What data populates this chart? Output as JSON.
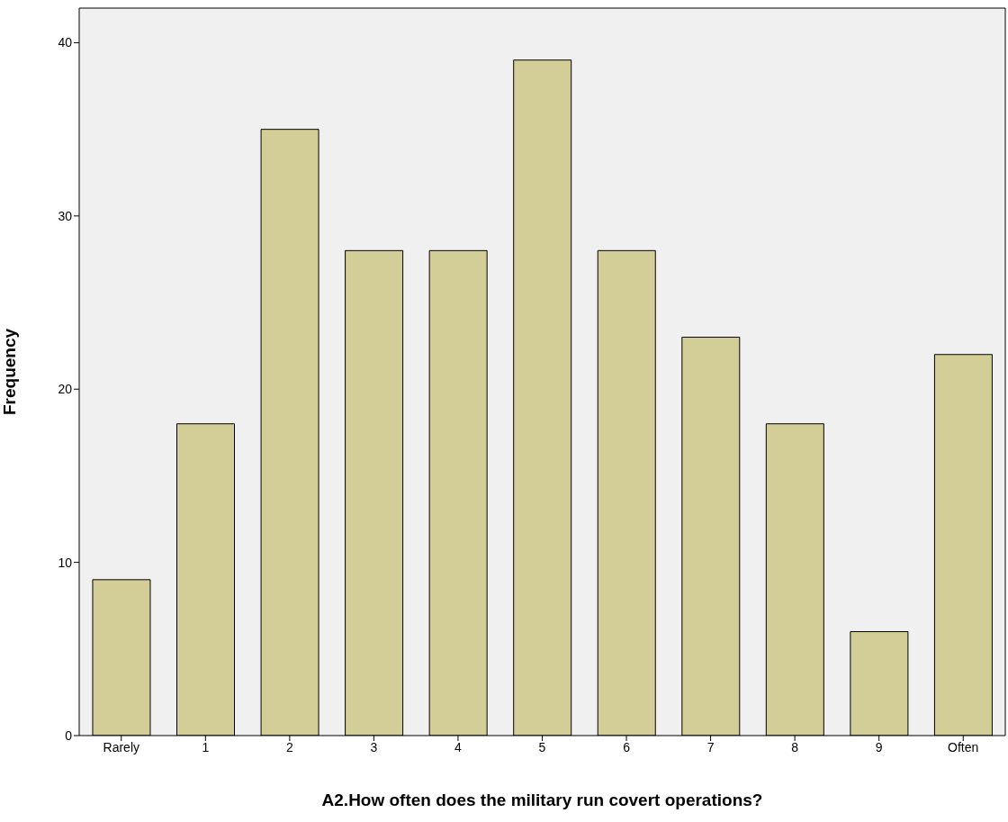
{
  "chart_data": {
    "type": "bar",
    "xlabel": "A2.How often does the military run covert operations?",
    "ylabel": "Frequency",
    "categories": [
      "Rarely",
      "1",
      "2",
      "3",
      "4",
      "5",
      "6",
      "7",
      "8",
      "9",
      "Often"
    ],
    "values": [
      9,
      18,
      35,
      28,
      28,
      39,
      28,
      23,
      18,
      6,
      22
    ],
    "color": "#d3ce97",
    "ylim": [
      0,
      42
    ],
    "yticks": [
      0,
      10,
      20,
      30,
      40
    ],
    "grid": false
  }
}
